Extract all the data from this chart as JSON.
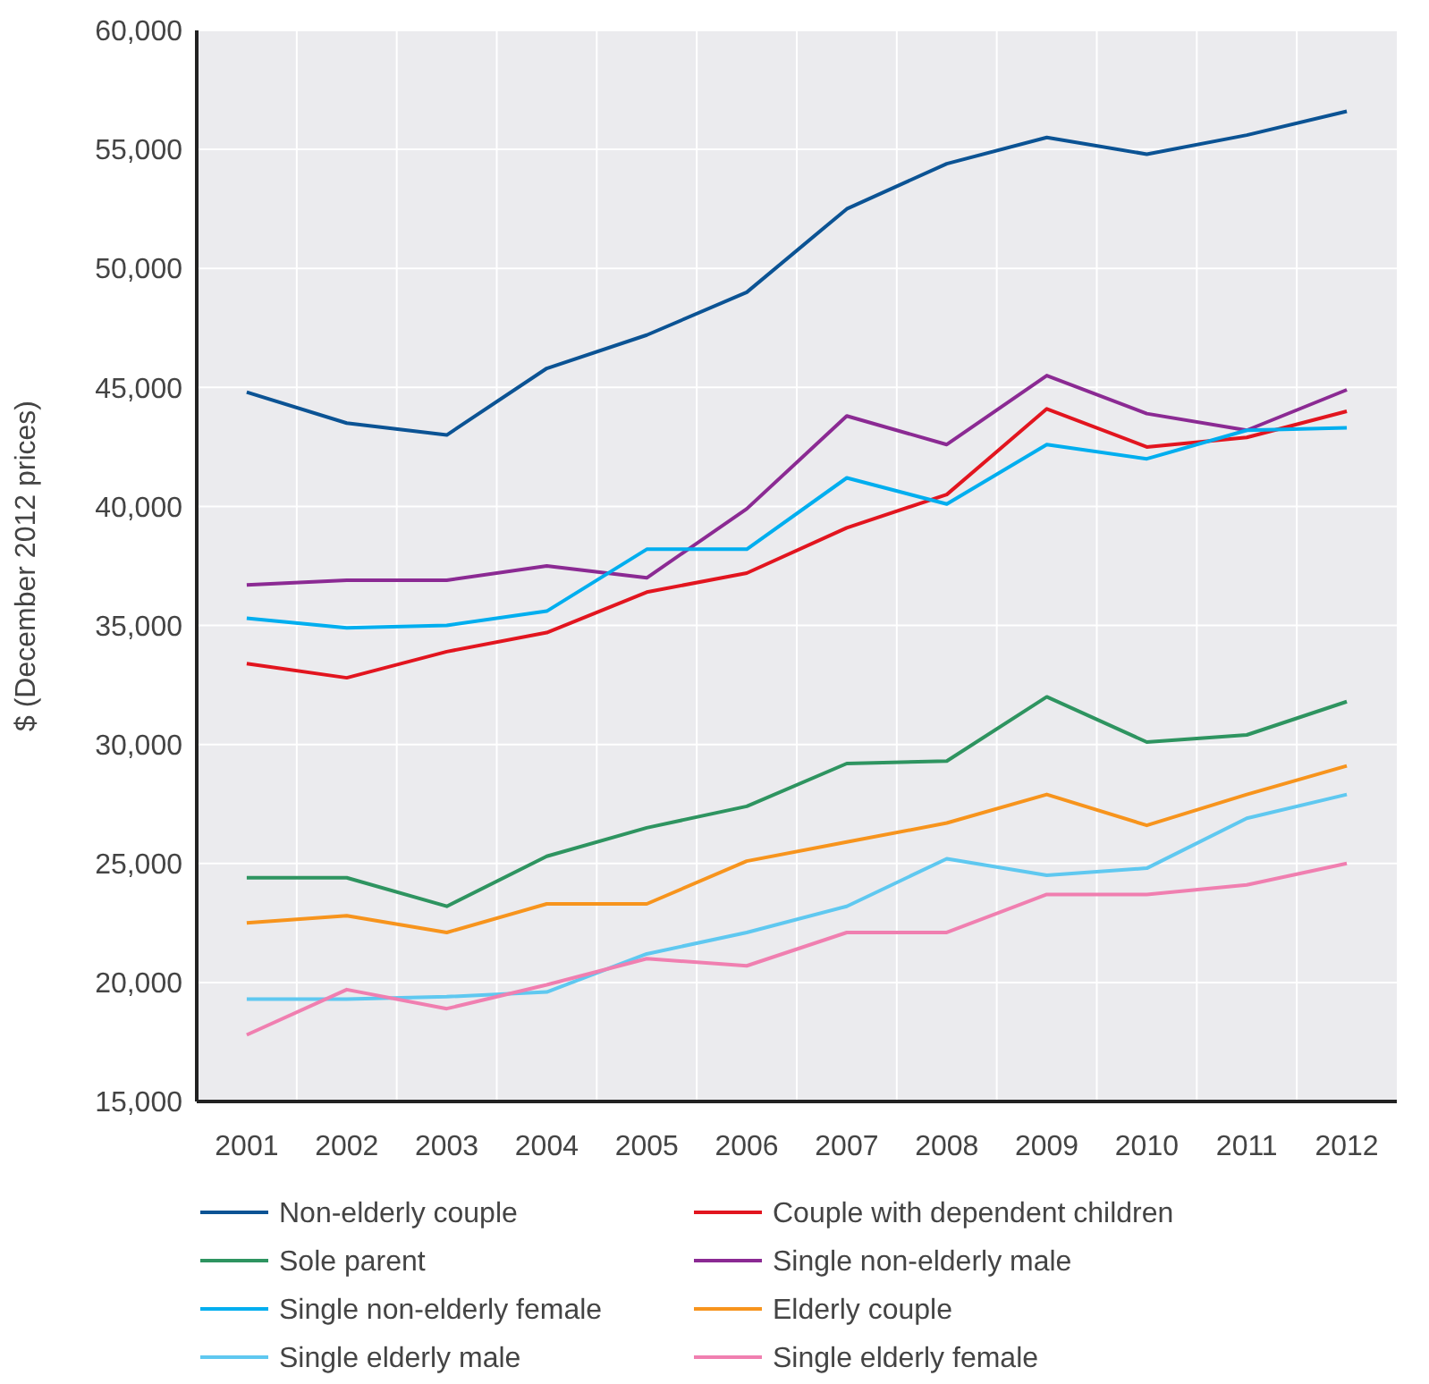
{
  "chart_data": {
    "type": "line",
    "ylabel": "$ (December 2012 prices)",
    "categories": [
      "2001",
      "2002",
      "2003",
      "2004",
      "2005",
      "2006",
      "2007",
      "2008",
      "2009",
      "2010",
      "2011",
      "2012"
    ],
    "ylim": [
      15000,
      60000
    ],
    "yticks": [
      {
        "value": 15000,
        "label": "15,000"
      },
      {
        "value": 20000,
        "label": "20,000"
      },
      {
        "value": 25000,
        "label": "25,000"
      },
      {
        "value": 30000,
        "label": "30,000"
      },
      {
        "value": 35000,
        "label": "35,000"
      },
      {
        "value": 40000,
        "label": "40,000"
      },
      {
        "value": 45000,
        "label": "45,000"
      },
      {
        "value": 50000,
        "label": "50,000"
      },
      {
        "value": 55000,
        "label": "55,000"
      },
      {
        "value": 60000,
        "label": "60,000"
      }
    ],
    "grid": true,
    "legend": "bottom",
    "marker": "none",
    "line_style": "solid",
    "series": [
      {
        "name": "Non-elderly couple",
        "color": "#0b5394",
        "values": [
          44800,
          43500,
          43000,
          45800,
          47200,
          49000,
          52500,
          54400,
          55500,
          54800,
          55600,
          56600
        ]
      },
      {
        "name": "Couple with dependent children",
        "color": "#e2151f",
        "values": [
          33400,
          32800,
          33900,
          34700,
          36400,
          37200,
          39100,
          40500,
          44100,
          42500,
          42900,
          44000
        ]
      },
      {
        "name": "Sole parent",
        "color": "#2e9460",
        "values": [
          24400,
          24400,
          23200,
          25300,
          26500,
          27400,
          29200,
          29300,
          32000,
          30100,
          30400,
          31800
        ]
      },
      {
        "name": "Single non-elderly male",
        "color": "#8b2a93",
        "values": [
          36700,
          36900,
          36900,
          37500,
          37000,
          39900,
          43800,
          42600,
          45500,
          43900,
          43200,
          44900
        ]
      },
      {
        "name": "Single non-elderly female",
        "color": "#00aeef",
        "values": [
          35300,
          34900,
          35000,
          35600,
          38200,
          38200,
          41200,
          40100,
          42600,
          42000,
          43200,
          43300
        ]
      },
      {
        "name": "Elderly couple",
        "color": "#f7941d",
        "values": [
          22500,
          22800,
          22100,
          23300,
          23300,
          25100,
          25900,
          26700,
          27900,
          26600,
          27900,
          29100
        ]
      },
      {
        "name": "Single elderly male",
        "color": "#5fc8f0",
        "values": [
          19300,
          19300,
          19400,
          19600,
          21200,
          22100,
          23200,
          25200,
          24500,
          24800,
          26900,
          27900
        ]
      },
      {
        "name": "Single elderly female",
        "color": "#f07fb0",
        "values": [
          17800,
          19700,
          18900,
          19900,
          21000,
          20700,
          22100,
          22100,
          23700,
          23700,
          24100,
          25000
        ]
      }
    ]
  }
}
